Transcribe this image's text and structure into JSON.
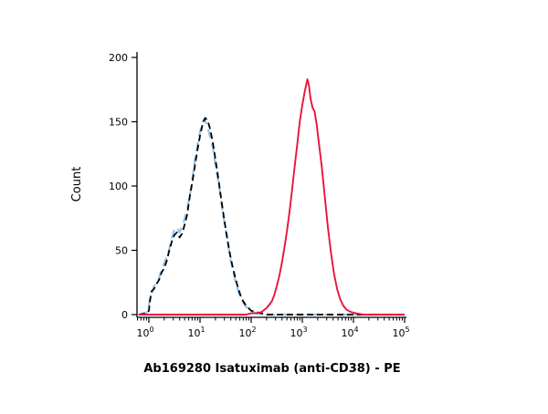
{
  "figure": {
    "background": "#ffffff"
  },
  "chart_data": {
    "type": "line",
    "subtype": "flow-cytometry-histogram",
    "title": "Ab169280 Isatuximab (anti-CD38) - PE",
    "xlabel": "",
    "ylabel": "Count",
    "x_scale": "log10",
    "xlim_log10": [
      -0.25,
      5.0
    ],
    "ylim": [
      0,
      200
    ],
    "y_ticks": [
      0,
      50,
      100,
      150,
      200
    ],
    "x_ticks_exponents": [
      0,
      1,
      2,
      3,
      4,
      5
    ],
    "grid": false,
    "legend": "none",
    "axis_color": "#000000",
    "series": [
      {
        "name": "control-blue-dashed",
        "color": "#8FC3EE",
        "dash": "10 6",
        "width": 2.2,
        "peak": {
          "x_log10": 1.08,
          "count": 152
        },
        "points_log10x_count": [
          [
            -0.2,
            0
          ],
          [
            -0.02,
            2
          ],
          [
            0.02,
            12
          ],
          [
            0.06,
            16
          ],
          [
            0.1,
            22
          ],
          [
            0.18,
            26
          ],
          [
            0.25,
            35
          ],
          [
            0.3,
            40
          ],
          [
            0.38,
            48
          ],
          [
            0.45,
            60
          ],
          [
            0.5,
            66
          ],
          [
            0.55,
            68
          ],
          [
            0.6,
            64
          ],
          [
            0.68,
            72
          ],
          [
            0.75,
            82
          ],
          [
            0.82,
            97
          ],
          [
            0.9,
            120
          ],
          [
            0.95,
            132
          ],
          [
            1.0,
            142
          ],
          [
            1.05,
            150
          ],
          [
            1.08,
            152
          ],
          [
            1.12,
            149
          ],
          [
            1.18,
            141
          ],
          [
            1.25,
            130
          ],
          [
            1.3,
            117
          ],
          [
            1.38,
            98
          ],
          [
            1.45,
            78
          ],
          [
            1.52,
            62
          ],
          [
            1.6,
            42
          ],
          [
            1.68,
            28
          ],
          [
            1.75,
            18
          ],
          [
            1.82,
            11
          ],
          [
            1.9,
            6
          ],
          [
            2.0,
            3
          ],
          [
            2.1,
            1
          ],
          [
            2.25,
            0
          ],
          [
            5.0,
            0
          ]
        ]
      },
      {
        "name": "control-black-dashed",
        "color": "#000000",
        "dash": "7 4",
        "width": 1.8,
        "peak": {
          "x_log10": 1.1,
          "count": 153
        },
        "points_log10x_count": [
          [
            -0.2,
            0
          ],
          [
            -0.05,
            1
          ],
          [
            0.0,
            3
          ],
          [
            0.02,
            10
          ],
          [
            0.05,
            18
          ],
          [
            0.1,
            20
          ],
          [
            0.15,
            24
          ],
          [
            0.2,
            27
          ],
          [
            0.25,
            33
          ],
          [
            0.3,
            36
          ],
          [
            0.35,
            42
          ],
          [
            0.4,
            50
          ],
          [
            0.45,
            57
          ],
          [
            0.5,
            62
          ],
          [
            0.55,
            64
          ],
          [
            0.6,
            60
          ],
          [
            0.65,
            63
          ],
          [
            0.7,
            70
          ],
          [
            0.75,
            78
          ],
          [
            0.8,
            92
          ],
          [
            0.85,
            103
          ],
          [
            0.9,
            116
          ],
          [
            0.95,
            128
          ],
          [
            1.0,
            139
          ],
          [
            1.05,
            148
          ],
          [
            1.1,
            153
          ],
          [
            1.15,
            151
          ],
          [
            1.2,
            144
          ],
          [
            1.25,
            134
          ],
          [
            1.3,
            121
          ],
          [
            1.35,
            108
          ],
          [
            1.4,
            94
          ],
          [
            1.45,
            80
          ],
          [
            1.5,
            67
          ],
          [
            1.55,
            55
          ],
          [
            1.6,
            44
          ],
          [
            1.65,
            35
          ],
          [
            1.7,
            27
          ],
          [
            1.75,
            20
          ],
          [
            1.8,
            14
          ],
          [
            1.85,
            10
          ],
          [
            1.9,
            7
          ],
          [
            1.95,
            5
          ],
          [
            2.0,
            3
          ],
          [
            2.1,
            2
          ],
          [
            2.2,
            1
          ],
          [
            2.3,
            0
          ],
          [
            5.0,
            0
          ]
        ]
      },
      {
        "name": "isatuximab-pe-red-solid",
        "color": "#E8143C",
        "dash": "none",
        "width": 1.9,
        "peak": {
          "x_log10": 3.1,
          "count": 183
        },
        "points_log10x_count": [
          [
            -0.2,
            0
          ],
          [
            1.9,
            0
          ],
          [
            2.0,
            1
          ],
          [
            2.1,
            1
          ],
          [
            2.2,
            2
          ],
          [
            2.3,
            5
          ],
          [
            2.4,
            10
          ],
          [
            2.45,
            15
          ],
          [
            2.5,
            22
          ],
          [
            2.55,
            30
          ],
          [
            2.6,
            40
          ],
          [
            2.65,
            52
          ],
          [
            2.7,
            65
          ],
          [
            2.75,
            80
          ],
          [
            2.8,
            97
          ],
          [
            2.85,
            115
          ],
          [
            2.9,
            132
          ],
          [
            2.95,
            150
          ],
          [
            3.0,
            163
          ],
          [
            3.05,
            174
          ],
          [
            3.1,
            183
          ],
          [
            3.13,
            178
          ],
          [
            3.16,
            168
          ],
          [
            3.2,
            161
          ],
          [
            3.24,
            158
          ],
          [
            3.28,
            148
          ],
          [
            3.32,
            135
          ],
          [
            3.38,
            115
          ],
          [
            3.44,
            92
          ],
          [
            3.5,
            68
          ],
          [
            3.56,
            48
          ],
          [
            3.62,
            32
          ],
          [
            3.68,
            20
          ],
          [
            3.74,
            12
          ],
          [
            3.8,
            7
          ],
          [
            3.86,
            4
          ],
          [
            3.95,
            2
          ],
          [
            4.05,
            1
          ],
          [
            4.2,
            0
          ],
          [
            5.0,
            0
          ]
        ]
      }
    ]
  }
}
